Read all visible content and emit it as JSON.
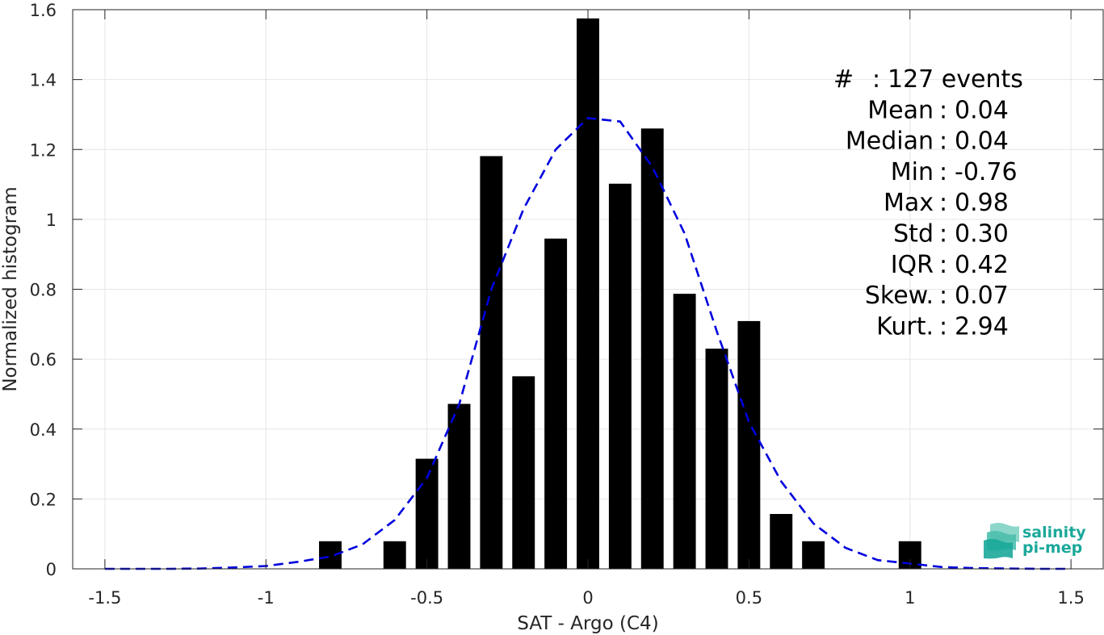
{
  "chart_data": {
    "type": "bar",
    "xlabel": "SAT - Argo (C4)",
    "ylabel": "Normalized histogram",
    "xlim": [
      -1.6,
      1.6
    ],
    "ylim": [
      0,
      1.6
    ],
    "xticks": [
      -1.5,
      -1,
      -0.5,
      0,
      0.5,
      1,
      1.5
    ],
    "xtick_labels": [
      "-1.5",
      "-1",
      "-0.5",
      "0",
      "0.5",
      "1",
      "1.5"
    ],
    "yticks": [
      0,
      0.2,
      0.4,
      0.6,
      0.8,
      1,
      1.2,
      1.4,
      1.6
    ],
    "ytick_labels": [
      "0",
      "0.2",
      "0.4",
      "0.6",
      "0.8",
      "1",
      "1.2",
      "1.4",
      "1.6"
    ],
    "grid": true,
    "bar_width": 0.07,
    "bar_color": "#000000",
    "bars": {
      "x": [
        -0.8,
        -0.6,
        -0.5,
        -0.4,
        -0.3,
        -0.2,
        -0.1,
        0.0,
        0.1,
        0.2,
        0.3,
        0.4,
        0.5,
        0.6,
        0.7,
        1.0
      ],
      "values": [
        0.079,
        0.079,
        0.315,
        0.472,
        1.181,
        0.551,
        0.945,
        1.575,
        1.102,
        1.26,
        0.787,
        0.63,
        0.709,
        0.157,
        0.079,
        0.079
      ]
    },
    "fit_curve": {
      "style": "dashed",
      "color": "#0000dd",
      "x": [
        -1.5,
        -1.4,
        -1.3,
        -1.2,
        -1.1,
        -1.0,
        -0.9,
        -0.8,
        -0.7,
        -0.6,
        -0.5,
        -0.4,
        -0.3,
        -0.2,
        -0.1,
        0.0,
        0.1,
        0.2,
        0.3,
        0.4,
        0.5,
        0.6,
        0.7,
        0.8,
        0.9,
        1.0,
        1.1,
        1.2,
        1.3,
        1.4,
        1.5
      ],
      "y": [
        0.0,
        0.0,
        0.0,
        0.001,
        0.004,
        0.008,
        0.02,
        0.035,
        0.07,
        0.14,
        0.26,
        0.47,
        0.8,
        1.03,
        1.2,
        1.29,
        1.28,
        1.15,
        0.96,
        0.68,
        0.42,
        0.25,
        0.13,
        0.06,
        0.025,
        0.015,
        0.005,
        0.002,
        0.001,
        0.0,
        0.0
      ]
    },
    "stats": [
      {
        "label": "#",
        "sep": ":",
        "value": "127 events"
      },
      {
        "label": "Mean",
        "sep": ":",
        "value": "0.04"
      },
      {
        "label": "Median",
        "sep": ":",
        "value": "0.04"
      },
      {
        "label": "Min",
        "sep": ":",
        "value": "-0.76"
      },
      {
        "label": "Max",
        "sep": ":",
        "value": "0.98"
      },
      {
        "label": "Std",
        "sep": ":",
        "value": "0.30"
      },
      {
        "label": "IQR",
        "sep": ":",
        "value": "0.42"
      },
      {
        "label": "Skew.",
        "sep": ":",
        "value": "0.07"
      },
      {
        "label": "Kurt.",
        "sep": ":",
        "value": "2.94"
      }
    ]
  },
  "logo": {
    "line1": "salinity",
    "line2": "pi-mep",
    "icon": "wave-stack-icon",
    "color": "#1aa89a"
  }
}
